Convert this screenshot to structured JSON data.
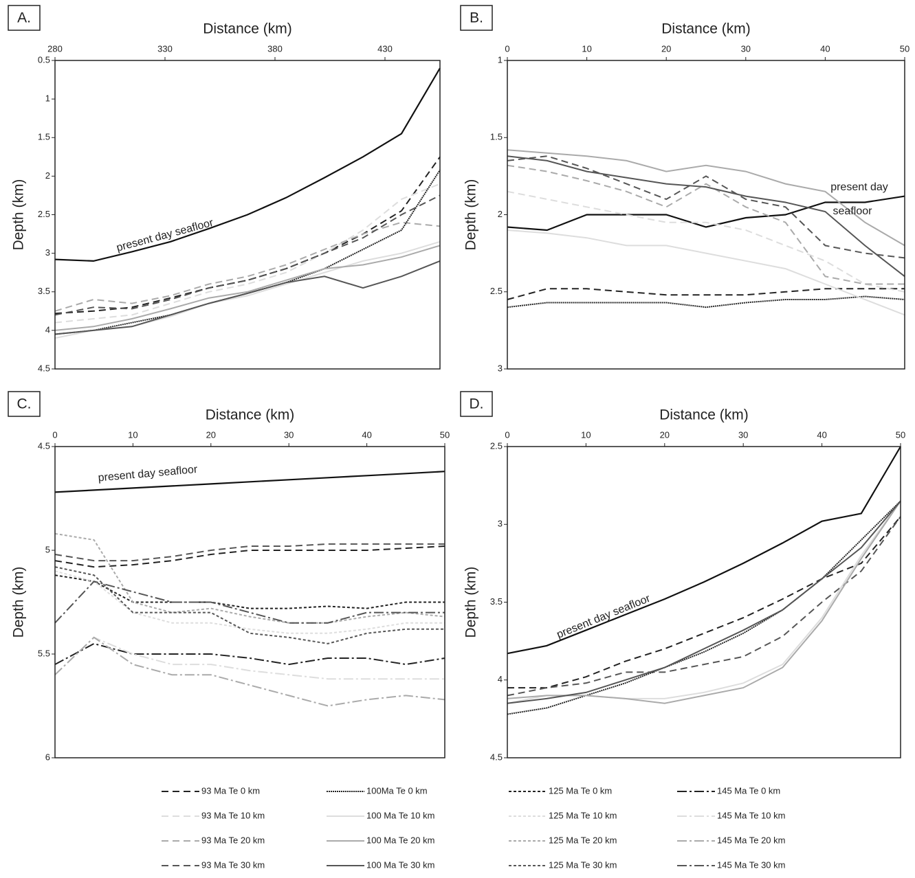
{
  "chart_data": [
    {
      "type": "line",
      "label": "A.",
      "xlabel": "Distance (km)",
      "ylabel": "Depth (km)",
      "x": [
        280,
        297.5,
        315,
        332.5,
        350,
        367.5,
        385,
        402.5,
        420,
        437.5,
        455
      ],
      "xlim": [
        280,
        455
      ],
      "xticks": [
        280,
        330,
        380,
        430
      ],
      "ylim": [
        0.5,
        4.5
      ],
      "yticks": [
        0.5,
        1,
        1.5,
        2,
        2.5,
        3,
        3.5,
        4,
        4.5
      ],
      "y_inverted": true,
      "annotation": [
        "present day seafloor"
      ],
      "series": [
        {
          "color": "#111111",
          "values": [
            3.08,
            3.1,
            2.98,
            2.85,
            2.68,
            2.5,
            2.28,
            2.02,
            1.75,
            1.45,
            0.6
          ]
        },
        {
          "name": "93 Ma Te 0 km",
          "values": [
            3.78,
            3.75,
            3.7,
            3.58,
            3.45,
            3.35,
            3.2,
            3.0,
            2.75,
            2.45,
            1.75
          ]
        },
        {
          "name": "93 Ma Te 10 km",
          "values": [
            3.9,
            3.85,
            3.8,
            3.65,
            3.5,
            3.4,
            3.25,
            3.0,
            2.7,
            2.3,
            2.1
          ]
        },
        {
          "name": "93 Ma Te 20 km",
          "values": [
            3.75,
            3.6,
            3.65,
            3.55,
            3.4,
            3.3,
            3.15,
            2.95,
            2.75,
            2.6,
            2.65
          ]
        },
        {
          "name": "93 Ma Te 30 km",
          "values": [
            3.8,
            3.7,
            3.72,
            3.6,
            3.45,
            3.35,
            3.2,
            3.0,
            2.8,
            2.5,
            2.25
          ]
        },
        {
          "name": "100Ma Te 0 km",
          "values": [
            4.05,
            4.0,
            3.9,
            3.8,
            3.65,
            3.52,
            3.38,
            3.2,
            2.95,
            2.7,
            1.92
          ]
        },
        {
          "name": "100 Ma Te 10 km",
          "values": [
            4.1,
            4.0,
            3.95,
            3.82,
            3.65,
            3.55,
            3.4,
            3.25,
            3.1,
            3.0,
            2.85
          ]
        },
        {
          "name": "100 Ma Te 20 km",
          "values": [
            4.0,
            3.95,
            3.85,
            3.72,
            3.58,
            3.5,
            3.35,
            3.2,
            3.15,
            3.05,
            2.9
          ]
        },
        {
          "name": "100 Ma Te 30 km",
          "values": [
            4.05,
            4.0,
            3.95,
            3.8,
            3.65,
            3.52,
            3.38,
            3.3,
            3.45,
            3.3,
            3.1
          ]
        }
      ]
    },
    {
      "type": "line",
      "label": "B.",
      "xlabel": "Distance (km)",
      "ylabel": "Depth (km)",
      "x": [
        0,
        5,
        10,
        15,
        20,
        25,
        30,
        35,
        40,
        45,
        50
      ],
      "xlim": [
        0,
        50
      ],
      "xticks": [
        0,
        10,
        20,
        30,
        40,
        50
      ],
      "ylim": [
        1,
        3
      ],
      "yticks": [
        1,
        1.5,
        2,
        2.5,
        3
      ],
      "y_inverted": true,
      "annotation": [
        "present day",
        "seafloor"
      ],
      "series": [
        {
          "color": "#111111",
          "values": [
            2.08,
            2.1,
            2.0,
            2.0,
            2.0,
            2.08,
            2.02,
            2.0,
            1.92,
            1.92,
            1.88
          ]
        },
        {
          "name": "93 Ma Te 0 km",
          "values": [
            2.55,
            2.48,
            2.48,
            2.5,
            2.52,
            2.52,
            2.52,
            2.5,
            2.48,
            2.48,
            2.48
          ]
        },
        {
          "name": "93 Ma Te 10 km",
          "values": [
            1.85,
            1.9,
            1.95,
            2.0,
            2.05,
            2.05,
            2.1,
            2.2,
            2.3,
            2.45,
            2.5
          ]
        },
        {
          "name": "93 Ma Te 20 km",
          "values": [
            1.68,
            1.72,
            1.78,
            1.85,
            1.95,
            1.8,
            1.95,
            2.05,
            2.4,
            2.45,
            2.45
          ]
        },
        {
          "name": "93 Ma Te 30 km",
          "values": [
            1.65,
            1.62,
            1.7,
            1.8,
            1.9,
            1.75,
            1.9,
            1.95,
            2.2,
            2.25,
            2.28
          ]
        },
        {
          "name": "100Ma Te 0 km",
          "values": [
            2.6,
            2.57,
            2.57,
            2.57,
            2.57,
            2.6,
            2.57,
            2.55,
            2.55,
            2.53,
            2.55
          ]
        },
        {
          "name": "100 Ma Te 10 km",
          "values": [
            2.1,
            2.12,
            2.15,
            2.2,
            2.2,
            2.25,
            2.3,
            2.35,
            2.45,
            2.55,
            2.65
          ]
        },
        {
          "name": "100 Ma Te 20 km",
          "values": [
            1.58,
            1.6,
            1.62,
            1.65,
            1.72,
            1.68,
            1.72,
            1.8,
            1.85,
            2.05,
            2.2
          ]
        },
        {
          "name": "100 Ma Te 30 km",
          "values": [
            1.62,
            1.65,
            1.72,
            1.76,
            1.8,
            1.82,
            1.88,
            1.92,
            1.98,
            2.2,
            2.4
          ]
        }
      ]
    },
    {
      "type": "line",
      "label": "C.",
      "xlabel": "Distance (km)",
      "ylabel": "Depth (km)",
      "x": [
        0,
        5,
        10,
        15,
        20,
        25,
        30,
        35,
        40,
        45,
        50
      ],
      "xlim": [
        0,
        50
      ],
      "xticks": [
        0,
        10,
        20,
        30,
        40,
        50
      ],
      "ylim": [
        4.5,
        6
      ],
      "yticks": [
        4.5,
        5,
        5.5,
        6
      ],
      "y_inverted": true,
      "annotation": [
        "present day seafloor"
      ],
      "series": [
        {
          "color": "#111111",
          "values": [
            4.72,
            4.71,
            4.7,
            4.69,
            4.68,
            4.67,
            4.66,
            4.65,
            4.64,
            4.63,
            4.62
          ]
        },
        {
          "name": "93 Ma Te 0 km",
          "values": [
            5.05,
            5.08,
            5.07,
            5.05,
            5.02,
            5.0,
            5.0,
            5.0,
            5.0,
            4.99,
            4.98
          ]
        },
        {
          "name": "93 Ma Te 30 km",
          "values": [
            5.02,
            5.05,
            5.05,
            5.03,
            5.0,
            4.98,
            4.98,
            4.97,
            4.97,
            4.97,
            4.97
          ]
        },
        {
          "name": "125 Ma Te 0 km",
          "values": [
            5.12,
            5.15,
            5.25,
            5.25,
            5.25,
            5.28,
            5.28,
            5.27,
            5.28,
            5.25,
            5.25
          ]
        },
        {
          "name": "125 Ma Te 10 km",
          "values": [
            5.1,
            5.15,
            5.3,
            5.35,
            5.35,
            5.38,
            5.4,
            5.4,
            5.38,
            5.35,
            5.35
          ]
        },
        {
          "name": "125 Ma Te 20 km",
          "values": [
            4.92,
            4.95,
            5.25,
            5.3,
            5.28,
            5.32,
            5.35,
            5.35,
            5.32,
            5.3,
            5.32
          ]
        },
        {
          "name": "125 Ma Te 30 km",
          "values": [
            5.08,
            5.12,
            5.3,
            5.3,
            5.3,
            5.4,
            5.42,
            5.45,
            5.4,
            5.38,
            5.38
          ]
        },
        {
          "name": "145 Ma Te 0 km",
          "values": [
            5.55,
            5.45,
            5.5,
            5.5,
            5.5,
            5.52,
            5.55,
            5.52,
            5.52,
            5.55,
            5.52
          ]
        },
        {
          "name": "145 Ma Te 10 km",
          "values": [
            5.6,
            5.42,
            5.5,
            5.55,
            5.55,
            5.58,
            5.6,
            5.62,
            5.62,
            5.62,
            5.62
          ]
        },
        {
          "name": "145 Ma Te 20 km",
          "values": [
            5.6,
            5.42,
            5.55,
            5.6,
            5.6,
            5.65,
            5.7,
            5.75,
            5.72,
            5.7,
            5.72
          ]
        },
        {
          "name": "145 Ma Te 30 km",
          "values": [
            5.35,
            5.15,
            5.2,
            5.25,
            5.25,
            5.3,
            5.35,
            5.35,
            5.3,
            5.3,
            5.3
          ]
        }
      ]
    },
    {
      "type": "line",
      "label": "D.",
      "xlabel": "Distance (km)",
      "ylabel": "Depth (km)",
      "x": [
        0,
        5,
        10,
        15,
        20,
        25,
        30,
        35,
        40,
        45,
        50
      ],
      "xlim": [
        0,
        50
      ],
      "xticks": [
        0,
        10,
        20,
        30,
        40,
        50
      ],
      "ylim": [
        2.5,
        4.5
      ],
      "yticks": [
        2.5,
        3,
        3.5,
        4,
        4.5
      ],
      "y_inverted": true,
      "annotation": [
        "present day seafloor"
      ],
      "series": [
        {
          "color": "#111111",
          "values": [
            3.83,
            3.78,
            3.68,
            3.58,
            3.48,
            3.37,
            3.25,
            3.12,
            2.98,
            2.93,
            2.5
          ]
        },
        {
          "name": "93 Ma Te 0 km",
          "values": [
            4.05,
            4.05,
            3.98,
            3.88,
            3.8,
            3.7,
            3.6,
            3.48,
            3.35,
            3.25,
            2.95
          ]
        },
        {
          "name": "93 Ma Te 30 km",
          "values": [
            4.1,
            4.05,
            4.02,
            3.95,
            3.95,
            3.9,
            3.85,
            3.72,
            3.5,
            3.3,
            2.95
          ]
        },
        {
          "name": "100Ma Te 0 km",
          "values": [
            4.22,
            4.18,
            4.1,
            4.02,
            3.92,
            3.82,
            3.7,
            3.55,
            3.35,
            3.1,
            2.85
          ]
        },
        {
          "name": "100 Ma Te 10 km",
          "values": [
            4.15,
            4.1,
            4.1,
            4.12,
            4.12,
            4.08,
            4.02,
            3.9,
            3.6,
            3.2,
            2.85
          ]
        },
        {
          "name": "100 Ma Te 20 km",
          "values": [
            4.12,
            4.1,
            4.1,
            4.12,
            4.15,
            4.1,
            4.05,
            3.92,
            3.62,
            3.22,
            2.85
          ]
        },
        {
          "name": "100 Ma Te 30 km",
          "values": [
            4.15,
            4.12,
            4.08,
            4.0,
            3.92,
            3.8,
            3.68,
            3.55,
            3.35,
            3.15,
            2.85
          ]
        }
      ]
    }
  ],
  "legend": [
    {
      "name": "93 Ma Te 0 km",
      "color": "#222222",
      "dash": "10 6"
    },
    {
      "name": "93 Ma Te 10 km",
      "color": "#dddddd",
      "dash": "10 6"
    },
    {
      "name": "93 Ma Te 20 km",
      "color": "#aaaaaa",
      "dash": "10 6"
    },
    {
      "name": "93 Ma Te 30 km",
      "color": "#555555",
      "dash": "10 6"
    },
    {
      "name": "100Ma Te 0 km",
      "color": "#222222",
      "dash": "2 1"
    },
    {
      "name": "100 Ma Te 10 km",
      "color": "#dddddd",
      "dash": "none"
    },
    {
      "name": "100 Ma Te 20 km",
      "color": "#aaaaaa",
      "dash": "none"
    },
    {
      "name": "100 Ma Te 30 km",
      "color": "#555555",
      "dash": "none"
    },
    {
      "name": "125 Ma Te 0 km",
      "color": "#222222",
      "dash": "4 3"
    },
    {
      "name": "125 Ma Te 10 km",
      "color": "#dddddd",
      "dash": "4 3"
    },
    {
      "name": "125 Ma Te 20 km",
      "color": "#aaaaaa",
      "dash": "4 3"
    },
    {
      "name": "125 Ma Te 30 km",
      "color": "#555555",
      "dash": "4 3"
    },
    {
      "name": "145 Ma Te 0 km",
      "color": "#222222",
      "dash": "14 4 3 4"
    },
    {
      "name": "145 Ma Te 10 km",
      "color": "#dddddd",
      "dash": "14 4 3 4"
    },
    {
      "name": "145 Ma Te 20 km",
      "color": "#aaaaaa",
      "dash": "14 4 3 4"
    },
    {
      "name": "145 Ma Te 30 km",
      "color": "#555555",
      "dash": "14 4 3 4"
    }
  ]
}
